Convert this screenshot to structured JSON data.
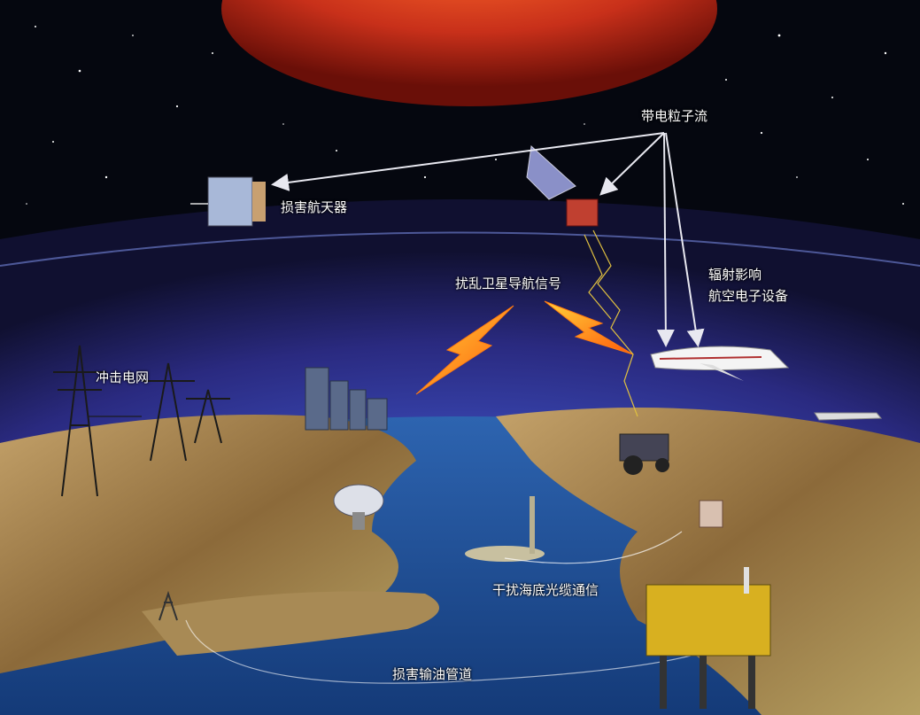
{
  "labels": {
    "charged_particle_stream": "带电粒子流",
    "damage_spacecraft": "损害航天器",
    "disrupt_satellite_navigation": "扰乱卫星导航信号",
    "radiation_line1": "辐射影响",
    "radiation_line2": "航空电子设备",
    "impact_power_grid": "冲击电网",
    "interfere_submarine_cable": "干扰海底光缆通信",
    "damage_oil_pipeline": "损害输油管道"
  },
  "colors": {
    "space": "#05070f",
    "sun": "#c8301a",
    "atmosphere": "#4a56c8",
    "ocean": "#1d4f9a",
    "land": "#a88a55",
    "arrow": "#e8e8f0",
    "lightning": "#ff8a1a"
  }
}
